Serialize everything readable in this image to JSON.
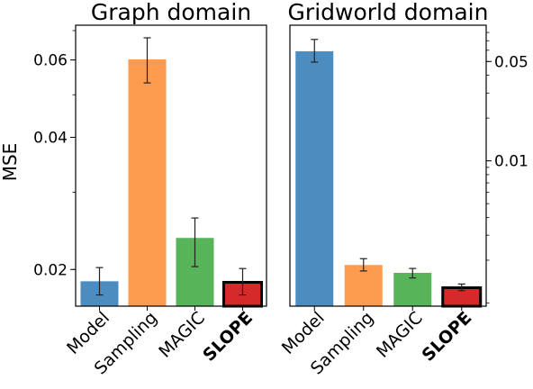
{
  "chart_data": [
    {
      "type": "bar",
      "title": "Graph domain",
      "ylabel": "MSE",
      "xlabel": "",
      "yscale": "log",
      "ylim": [
        0.0165,
        0.072
      ],
      "yticks": [
        0.02,
        0.04,
        0.06
      ],
      "ytick_labels": [
        "0.02",
        "0.04",
        "0.06"
      ],
      "y_axis_side": "left",
      "categories": [
        "Model",
        "Sampling",
        "MAGIC",
        "SLOPE"
      ],
      "bold_category": "SLOPE",
      "values": [
        0.0188,
        0.0602,
        0.0236,
        0.0187
      ],
      "error_low": [
        0.0175,
        0.0532,
        0.0203,
        0.0175
      ],
      "error_high": [
        0.0202,
        0.0674,
        0.0262,
        0.0201
      ],
      "colors": [
        "#4c8cbf",
        "#fd9b4f",
        "#58b459",
        "#d62a2a"
      ],
      "highlight_outline": "#000000",
      "grid": false
    },
    {
      "type": "bar",
      "title": "Gridworld domain",
      "xlabel": "",
      "ylabel": "",
      "yscale": "log",
      "ylim": [
        0.00095,
        0.09
      ],
      "yticks": [
        0.01,
        0.05
      ],
      "ytick_labels": [
        "0.01",
        "0.05"
      ],
      "y_axis_side": "right",
      "categories": [
        "Model",
        "Sampling",
        "MAGIC",
        "SLOPE"
      ],
      "bold_category": "SLOPE",
      "values": [
        0.059,
        0.00185,
        0.00163,
        0.00128
      ],
      "error_low": [
        0.0495,
        0.00168,
        0.0015,
        0.00122
      ],
      "error_high": [
        0.0715,
        0.00205,
        0.00175,
        0.00136
      ],
      "colors": [
        "#4c8cbf",
        "#fd9b4f",
        "#58b459",
        "#d62a2a"
      ],
      "highlight_outline": "#000000",
      "grid": false
    }
  ]
}
